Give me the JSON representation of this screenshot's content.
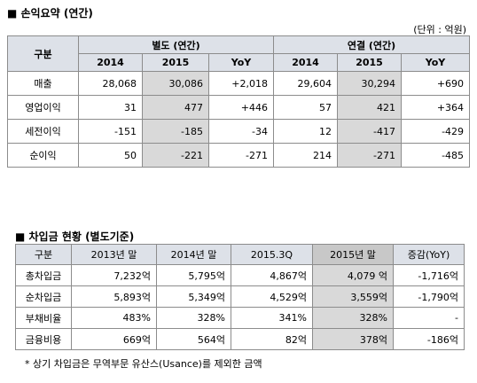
{
  "section1": {
    "title": "■ 손익요약 (연간)",
    "unit": "(단위 : 억원)",
    "table": {
      "corner": "구분",
      "groups": [
        "별도 (연간)",
        "연결 (연간)"
      ],
      "subheaders": [
        "2014",
        "2015",
        "YoY",
        "2014",
        "2015",
        "YoY"
      ],
      "rows": [
        [
          "매출",
          "28,068",
          "30,086",
          "+2,018",
          "29,604",
          "30,294",
          "+690"
        ],
        [
          "영업이익",
          "31",
          "477",
          "+446",
          "57",
          "421",
          "+364"
        ],
        [
          "세전이익",
          "-151",
          "-185",
          "-34",
          "12",
          "-417",
          "-429"
        ],
        [
          "순이익",
          "50",
          "-221",
          "-271",
          "214",
          "-271",
          "-485"
        ]
      ]
    }
  },
  "section2": {
    "title": "■ 차입금 현황 (별도기준)",
    "table": {
      "headers": [
        "구분",
        "2013년 말",
        "2014년 말",
        "2015.3Q",
        "2015년 말",
        "증감(YoY)"
      ],
      "rows": [
        [
          "총차입금",
          "7,232억",
          "5,795억",
          "4,867억",
          "4,079 억",
          "-1,716억"
        ],
        [
          "순차입금",
          "5,893억",
          "5,349억",
          "4,529억",
          "3,559억",
          "-1,790억"
        ],
        [
          "부채비율",
          "483%",
          "328%",
          "341%",
          "328%",
          "-"
        ],
        [
          "금융비용",
          "669억",
          "564억",
          "82억",
          "378억",
          "-186억"
        ]
      ]
    },
    "note": "* 상기 차입금은 무역부문 유산스(Usance)를 제외한 금액"
  }
}
